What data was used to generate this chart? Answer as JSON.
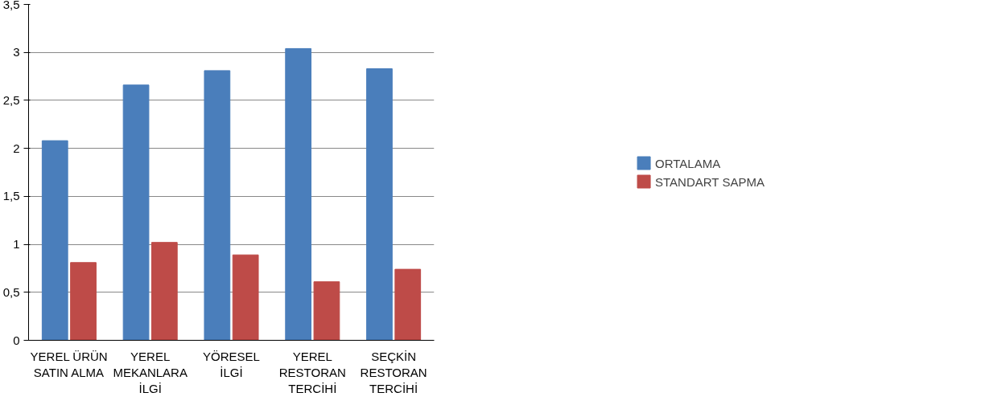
{
  "chart_data": {
    "type": "bar",
    "categories": [
      "YEREL ÜRÜN\nSATIN ALMA",
      "YEREL\nMEKANLARA\nİLGİ",
      "YÖRESEL\nİLGİ",
      "YEREL\nRESTORAN\nTERCİHİ",
      "SEÇKİN\nRESTORAN\nTERCİHİ"
    ],
    "series": [
      {
        "name": "ORTALAMA",
        "color": "#4a7ebb",
        "values": [
          2.08,
          2.66,
          2.81,
          3.04,
          2.83
        ]
      },
      {
        "name": "STANDART SAPMA",
        "color": "#be4b48",
        "values": [
          0.81,
          1.02,
          0.89,
          0.61,
          0.74
        ]
      }
    ],
    "ylim": [
      0,
      3.5
    ],
    "yticks": [
      0,
      {
        "value": 0.5,
        "label": "0,5"
      },
      1,
      {
        "value": 1.5,
        "label": "1,5"
      },
      2,
      {
        "value": 2.5,
        "label": "2,5"
      },
      3,
      {
        "value": 3.5,
        "label": "3,5"
      }
    ],
    "grid": "y",
    "legend": "right"
  }
}
